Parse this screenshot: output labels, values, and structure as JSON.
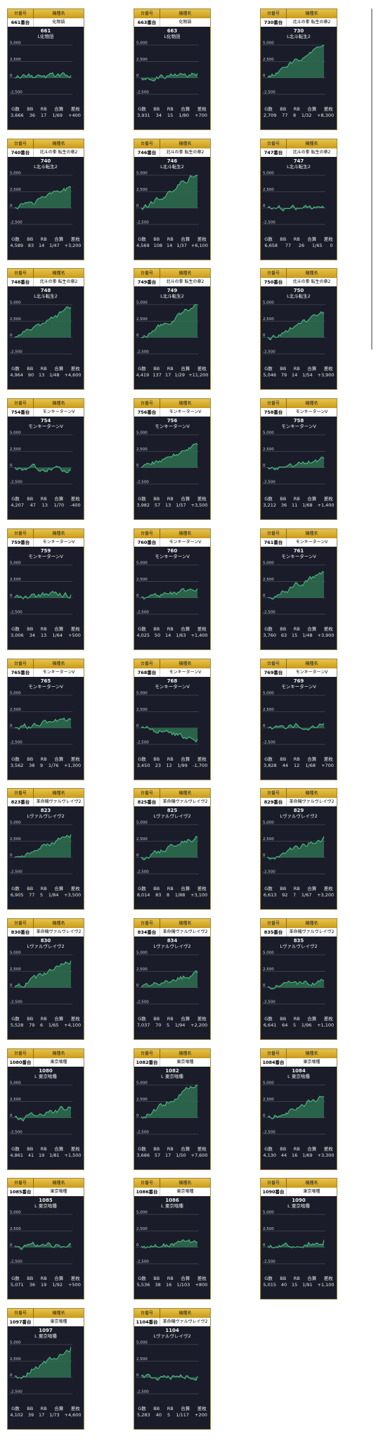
{
  "header_labels": {
    "unit": "台番号",
    "machine": "機種名"
  },
  "stat_labels": {
    "g": "G数",
    "bb": "BB",
    "rb": "RB",
    "total": "合算",
    "diff": "差枚"
  },
  "axis_labels": {
    "top": "5,000",
    "mid": "2,500",
    "zero": "0",
    "bottom": "-2,500"
  },
  "colors": {
    "gold": "#d9ad2e",
    "panel": "#1a1d29",
    "line": "#4fc48a",
    "fill": "#2f6e50"
  },
  "scrollbar": "vertical-scrollbar",
  "units": [
    {
      "unit_label": "661番台",
      "machine": "化物語",
      "number": "661",
      "short_name": "L化物語",
      "games": "3,666",
      "bb": "36",
      "rb": "17",
      "total": "1/69",
      "diff": "+400",
      "final_diff": 400
    },
    {
      "unit_label": "663番台",
      "machine": "化物語",
      "number": "663",
      "short_name": "L化物語",
      "games": "3,931",
      "bb": "34",
      "rb": "15",
      "total": "1/80",
      "diff": "+700",
      "final_diff": 700
    },
    {
      "unit_label": "730番台",
      "machine": "北斗の拳 転生の章2",
      "number": "730",
      "short_name": "L北斗転生2",
      "games": "2,709",
      "bb": "77",
      "rb": "8",
      "total": "1/32",
      "diff": "+8,300",
      "final_diff": 8300
    },
    {
      "unit_label": "740番台",
      "machine": "北斗の拳 転生の章2",
      "number": "740",
      "short_name": "L北斗転生2",
      "games": "4,589",
      "bb": "83",
      "rb": "14",
      "total": "1/47",
      "diff": "+3,200",
      "final_diff": 3200
    },
    {
      "unit_label": "746番台",
      "machine": "北斗の拳 転生の章2",
      "number": "746",
      "short_name": "L北斗転生2",
      "games": "4,569",
      "bb": "108",
      "rb": "14",
      "total": "1/37",
      "diff": "+6,100",
      "final_diff": 6100
    },
    {
      "unit_label": "747番台",
      "machine": "北斗の拳 転生の章2",
      "number": "747",
      "short_name": "L北斗転生2",
      "games": "6,658",
      "bb": "77",
      "rb": "26",
      "total": "1/65",
      "diff": "0",
      "final_diff": 0
    },
    {
      "unit_label": "748番台",
      "machine": "北斗の拳 転生の章2",
      "number": "748",
      "short_name": "L北斗転生2",
      "games": "4,964",
      "bb": "90",
      "rb": "13",
      "total": "1/48",
      "diff": "+4,600",
      "final_diff": 4600
    },
    {
      "unit_label": "749番台",
      "machine": "北斗の拳 転生の章2",
      "number": "749",
      "short_name": "L北斗転生2",
      "games": "4,419",
      "bb": "137",
      "rb": "17",
      "total": "1/29",
      "diff": "+11,200",
      "final_diff": 11200
    },
    {
      "unit_label": "750番台",
      "machine": "北斗の拳 転生の章2",
      "number": "750",
      "short_name": "L北斗転生2",
      "games": "5,046",
      "bb": "79",
      "rb": "14",
      "total": "1/54",
      "diff": "+3,900",
      "final_diff": 3900
    },
    {
      "unit_label": "754番台",
      "machine": "モンキーターンV",
      "number": "754",
      "short_name": "モンキーターンV",
      "games": "4,207",
      "bb": "47",
      "rb": "13",
      "total": "1/70",
      "diff": "-400",
      "final_diff": -400
    },
    {
      "unit_label": "756番台",
      "machine": "モンキーターンV",
      "number": "756",
      "short_name": "モンキーターンV",
      "games": "3,982",
      "bb": "57",
      "rb": "13",
      "total": "1/57",
      "diff": "+3,500",
      "final_diff": 3500
    },
    {
      "unit_label": "758番台",
      "machine": "モンキーターンV",
      "number": "758",
      "short_name": "モンキーターンV",
      "games": "3,212",
      "bb": "36",
      "rb": "11",
      "total": "1/68",
      "diff": "+1,400",
      "final_diff": 1400
    },
    {
      "unit_label": "759番台",
      "machine": "モンキーターンV",
      "number": "759",
      "short_name": "モンキーターンV",
      "games": "3,006",
      "bb": "34",
      "rb": "13",
      "total": "1/64",
      "diff": "+500",
      "final_diff": 500
    },
    {
      "unit_label": "760番台",
      "machine": "モンキーターンV",
      "number": "760",
      "short_name": "モンキーターンV",
      "games": "4,025",
      "bb": "50",
      "rb": "14",
      "total": "1/63",
      "diff": "+1,400",
      "final_diff": 1400
    },
    {
      "unit_label": "761番台",
      "machine": "モンキーターンV",
      "number": "761",
      "short_name": "モンキーターンV",
      "games": "3,760",
      "bb": "63",
      "rb": "15",
      "total": "1/48",
      "diff": "+3,900",
      "final_diff": 3900
    },
    {
      "unit_label": "765番台",
      "machine": "モンキーターンV",
      "number": "765",
      "short_name": "モンキーターンV",
      "games": "3,562",
      "bb": "38",
      "rb": "9",
      "total": "1/76",
      "diff": "+1,300",
      "final_diff": 1300
    },
    {
      "unit_label": "768番台",
      "machine": "モンキーターンV",
      "number": "768",
      "short_name": "モンキーターンV",
      "games": "3,450",
      "bb": "23",
      "rb": "12",
      "total": "1/99",
      "diff": "-1,700",
      "final_diff": -1700
    },
    {
      "unit_label": "769番台",
      "machine": "モンキーターンV",
      "number": "769",
      "short_name": "モンキーターンV",
      "games": "3,828",
      "bb": "44",
      "rb": "12",
      "total": "1/68",
      "diff": "+700",
      "final_diff": 700
    },
    {
      "unit_label": "823番台",
      "machine": "革命機ヴァルヴレイヴ2",
      "number": "823",
      "short_name": "Lヴァルヴレイヴ2",
      "games": "6,905",
      "bb": "77",
      "rb": "5",
      "total": "1/84",
      "diff": "+3,500",
      "final_diff": 3500
    },
    {
      "unit_label": "825番台",
      "machine": "革命機ヴァルヴレイヴ2",
      "number": "825",
      "short_name": "Lヴァルヴレイヴ2",
      "games": "8,014",
      "bb": "83",
      "rb": "8",
      "total": "1/88",
      "diff": "+3,100",
      "final_diff": 3100
    },
    {
      "unit_label": "829番台",
      "machine": "革命機ヴァルヴレイヴ2",
      "number": "829",
      "short_name": "Lヴァルヴレイヴ2",
      "games": "6,613",
      "bb": "92",
      "rb": "7",
      "total": "1/67",
      "diff": "+3,200",
      "final_diff": 3200
    },
    {
      "unit_label": "830番台",
      "machine": "革命機ヴァルヴレイヴ2",
      "number": "830",
      "short_name": "Lヴァルヴレイヴ2",
      "games": "5,528",
      "bb": "79",
      "rb": "6",
      "total": "1/65",
      "diff": "+4,100",
      "final_diff": 4100
    },
    {
      "unit_label": "834番台",
      "machine": "革命機ヴァルヴレイヴ2",
      "number": "834",
      "short_name": "Lヴァルヴレイヴ2",
      "games": "7,037",
      "bb": "70",
      "rb": "5",
      "total": "1/94",
      "diff": "+2,200",
      "final_diff": 2200
    },
    {
      "unit_label": "835番台",
      "machine": "革命機ヴァルヴレイヴ2",
      "number": "835",
      "short_name": "Lヴァルヴレイヴ2",
      "games": "6,641",
      "bb": "64",
      "rb": "5",
      "total": "1/96",
      "diff": "+1,100",
      "final_diff": 1100
    },
    {
      "unit_label": "1080番台",
      "machine": "東京喰種",
      "number": "1080",
      "short_name": "L 東京喰種",
      "games": "4,861",
      "bb": "41",
      "rb": "19",
      "total": "1/81",
      "diff": "+1,500",
      "final_diff": 1500
    },
    {
      "unit_label": "1082番台",
      "machine": "東京喰種",
      "number": "1082",
      "short_name": "L 東京喰種",
      "games": "3,686",
      "bb": "57",
      "rb": "17",
      "total": "1/50",
      "diff": "+7,600",
      "final_diff": 7600
    },
    {
      "unit_label": "1084番台",
      "machine": "東京喰種",
      "number": "1084",
      "short_name": "L 東京喰種",
      "games": "4,130",
      "bb": "44",
      "rb": "16",
      "total": "1/69",
      "diff": "+3,300",
      "final_diff": 3300
    },
    {
      "unit_label": "1085番台",
      "machine": "東京喰種",
      "number": "1085",
      "short_name": "L 東京喰種",
      "games": "5,071",
      "bb": "36",
      "rb": "19",
      "total": "1/92",
      "diff": "+500",
      "final_diff": 500
    },
    {
      "unit_label": "1086番台",
      "machine": "東京喰種",
      "number": "1086",
      "short_name": "L 東京喰種",
      "games": "5,536",
      "bb": "38",
      "rb": "16",
      "total": "1/103",
      "diff": "+800",
      "final_diff": 800
    },
    {
      "unit_label": "1090番台",
      "machine": "東京喰種",
      "number": "1090",
      "short_name": "L 東京喰種",
      "games": "5,015",
      "bb": "40",
      "rb": "15",
      "total": "1/91",
      "diff": "+1,100",
      "final_diff": 1100
    },
    {
      "unit_label": "1097番台",
      "machine": "東京喰種",
      "number": "1097",
      "short_name": "L 東京喰種",
      "games": "4,102",
      "bb": "39",
      "rb": "17",
      "total": "1/73",
      "diff": "+4,600",
      "final_diff": 4600
    },
    {
      "unit_label": "1104番台",
      "machine": "革命機ヴァルヴレイヴ2",
      "number": "1104",
      "short_name": "Lヴァルヴレイヴ2",
      "games": "5,283",
      "bb": "40",
      "rb": "5",
      "total": "1/117",
      "diff": "+200",
      "final_diff": 200
    }
  ]
}
